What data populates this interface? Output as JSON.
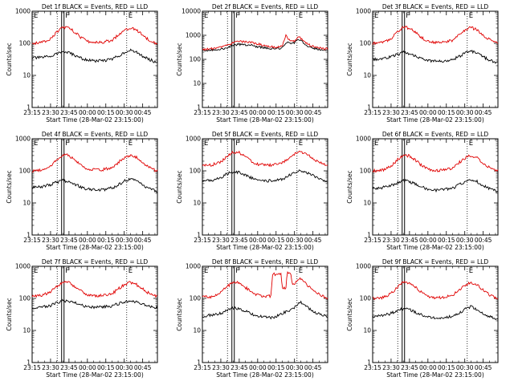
{
  "figure": {
    "type": "line",
    "xlabel": "Start Time (28-Mar-02 23:15:00)",
    "ylabel": "Counts/sec",
    "x_tick_labels": [
      "23:15",
      "23:30",
      "23:45",
      "00:00",
      "00:15",
      "00:30",
      "00:45"
    ],
    "y_tick_labels": [
      "1",
      "10",
      "100",
      "1000"
    ],
    "colors": {
      "events": "#000000",
      "lld": "#e00000"
    }
  },
  "chart_data": [
    {
      "type": "line",
      "title": "Det 1f BLACK = Events, RED = LLD",
      "xlabel": "Start Time (28-Mar-02 23:15:00)",
      "ylabel": "Counts/sec",
      "x_unit": "minutes after 23:15",
      "xlim": [
        0,
        102
      ],
      "ylim": [
        1,
        1000
      ],
      "yscale": "log",
      "markers": [
        {
          "label": "E",
          "x": 0
        },
        {
          "label": "F",
          "x": 25
        },
        {
          "label": "E",
          "x": 77
        }
      ],
      "series": [
        {
          "name": "Events",
          "color": "#000000",
          "x": [
            0,
            8,
            15,
            20,
            25,
            30,
            35,
            40,
            45,
            52,
            58,
            65,
            70,
            75,
            80,
            85,
            90,
            95,
            100,
            102
          ],
          "values": [
            35,
            36,
            40,
            48,
            55,
            50,
            42,
            34,
            30,
            28,
            29,
            32,
            40,
            52,
            60,
            52,
            40,
            32,
            27,
            26
          ]
        },
        {
          "name": "LLD",
          "color": "#e00000",
          "x": [
            0,
            8,
            15,
            20,
            25,
            30,
            35,
            40,
            45,
            52,
            58,
            65,
            70,
            75,
            80,
            85,
            90,
            95,
            100,
            102
          ],
          "values": [
            100,
            105,
            140,
            220,
            320,
            300,
            220,
            150,
            115,
            105,
            110,
            125,
            180,
            260,
            310,
            260,
            180,
            130,
            105,
            100
          ]
        }
      ]
    },
    {
      "type": "line",
      "title": "Det 2f BLACK = Events, RED = LLD",
      "xlabel": "Start Time (28-Mar-02 23:15:00)",
      "ylabel": "Counts/sec",
      "x_unit": "minutes after 23:15",
      "xlim": [
        0,
        102
      ],
      "ylim": [
        1,
        10000
      ],
      "yscale": "log",
      "markers": [
        {
          "label": "E",
          "x": 0
        },
        {
          "label": "F",
          "x": 25
        },
        {
          "label": "E",
          "x": 77
        }
      ],
      "series": [
        {
          "name": "Events",
          "color": "#000000",
          "x": [
            0,
            10,
            20,
            25,
            30,
            40,
            50,
            60,
            65,
            68,
            70,
            72,
            75,
            78,
            80,
            85,
            90,
            95,
            102
          ],
          "values": [
            230,
            240,
            300,
            380,
            420,
            380,
            300,
            270,
            290,
            450,
            520,
            450,
            500,
            700,
            600,
            380,
            300,
            260,
            240
          ]
        },
        {
          "name": "LLD",
          "color": "#e00000",
          "x": [
            0,
            10,
            20,
            25,
            30,
            40,
            50,
            60,
            65,
            68,
            70,
            72,
            75,
            78,
            80,
            85,
            90,
            95,
            102
          ],
          "values": [
            260,
            280,
            380,
            500,
            560,
            500,
            380,
            320,
            360,
            950,
            700,
            550,
            600,
            900,
            750,
            450,
            340,
            290,
            270
          ]
        }
      ]
    },
    {
      "type": "line",
      "title": "Det 3f BLACK = Events, RED = LLD",
      "xlabel": "Start Time (28-Mar-02 23:15:00)",
      "ylabel": "Counts/sec",
      "x_unit": "minutes after 23:15",
      "xlim": [
        0,
        102
      ],
      "ylim": [
        1,
        1000
      ],
      "yscale": "log",
      "markers": [
        {
          "label": "E",
          "x": 0
        },
        {
          "label": "F",
          "x": 25
        },
        {
          "label": "E",
          "x": 77
        }
      ],
      "series": [
        {
          "name": "Events",
          "color": "#000000",
          "x": [
            0,
            8,
            15,
            20,
            25,
            30,
            35,
            40,
            45,
            52,
            58,
            65,
            70,
            75,
            80,
            85,
            90,
            95,
            100,
            102
          ],
          "values": [
            32,
            33,
            38,
            45,
            52,
            48,
            40,
            33,
            29,
            27,
            28,
            31,
            38,
            50,
            58,
            50,
            38,
            30,
            26,
            25
          ]
        },
        {
          "name": "LLD",
          "color": "#e00000",
          "x": [
            0,
            8,
            15,
            20,
            25,
            30,
            35,
            40,
            45,
            52,
            58,
            65,
            70,
            75,
            80,
            85,
            90,
            95,
            100,
            102
          ],
          "values": [
            100,
            105,
            140,
            220,
            320,
            300,
            220,
            150,
            115,
            105,
            110,
            125,
            180,
            260,
            310,
            260,
            180,
            130,
            105,
            100
          ]
        }
      ]
    },
    {
      "type": "line",
      "title": "Det 4f BLACK = Events, RED = LLD",
      "xlabel": "Start Time (28-Mar-02 23:15:00)",
      "ylabel": "Counts/sec",
      "x_unit": "minutes after 23:15",
      "xlim": [
        0,
        102
      ],
      "ylim": [
        1,
        1000
      ],
      "yscale": "log",
      "markers": [
        {
          "label": "E",
          "x": 0
        },
        {
          "label": "F",
          "x": 25
        },
        {
          "label": "E",
          "x": 77
        }
      ],
      "series": [
        {
          "name": "Events",
          "color": "#000000",
          "x": [
            0,
            8,
            15,
            20,
            25,
            30,
            35,
            40,
            45,
            52,
            58,
            65,
            70,
            75,
            80,
            85,
            90,
            95,
            100,
            102
          ],
          "values": [
            30,
            32,
            37,
            44,
            50,
            46,
            38,
            31,
            27,
            25,
            26,
            29,
            36,
            48,
            55,
            47,
            36,
            28,
            24,
            23
          ]
        },
        {
          "name": "LLD",
          "color": "#e00000",
          "x": [
            0,
            8,
            15,
            20,
            25,
            30,
            35,
            40,
            45,
            52,
            58,
            65,
            70,
            75,
            80,
            85,
            90,
            95,
            100,
            102
          ],
          "values": [
            100,
            105,
            140,
            220,
            320,
            300,
            220,
            150,
            115,
            105,
            110,
            125,
            180,
            260,
            310,
            260,
            180,
            130,
            105,
            100
          ]
        }
      ]
    },
    {
      "type": "line",
      "title": "Det 5f BLACK = Events, RED = LLD",
      "xlabel": "Start Time (28-Mar-02 23:15:00)",
      "ylabel": "Counts/sec",
      "x_unit": "minutes after 23:15",
      "xlim": [
        0,
        102
      ],
      "ylim": [
        1,
        1000
      ],
      "yscale": "log",
      "markers": [
        {
          "label": "E",
          "x": 0
        },
        {
          "label": "F",
          "x": 25
        },
        {
          "label": "E",
          "x": 77
        }
      ],
      "series": [
        {
          "name": "Events",
          "color": "#000000",
          "x": [
            0,
            8,
            15,
            20,
            25,
            30,
            35,
            40,
            45,
            52,
            58,
            65,
            70,
            75,
            80,
            85,
            90,
            95,
            100,
            102
          ],
          "values": [
            50,
            52,
            62,
            80,
            95,
            90,
            75,
            60,
            52,
            48,
            50,
            55,
            70,
            90,
            105,
            90,
            70,
            58,
            50,
            48
          ]
        },
        {
          "name": "LLD",
          "color": "#e00000",
          "x": [
            0,
            8,
            15,
            20,
            25,
            30,
            35,
            40,
            45,
            52,
            58,
            65,
            70,
            75,
            80,
            85,
            90,
            95,
            100,
            102
          ],
          "values": [
            150,
            155,
            190,
            280,
            390,
            370,
            280,
            200,
            160,
            150,
            155,
            175,
            240,
            330,
            390,
            330,
            240,
            180,
            155,
            150
          ]
        }
      ]
    },
    {
      "type": "line",
      "title": "Det 6f BLACK = Events, RED = LLD",
      "xlabel": "Start Time (28-Mar-02 23:15:00)",
      "ylabel": "Counts/sec",
      "x_unit": "minutes after 23:15",
      "xlim": [
        0,
        102
      ],
      "ylim": [
        1,
        1000
      ],
      "yscale": "log",
      "markers": [
        {
          "label": "E",
          "x": 0
        },
        {
          "label": "F",
          "x": 25
        },
        {
          "label": "E",
          "x": 77
        }
      ],
      "series": [
        {
          "name": "Events",
          "color": "#000000",
          "x": [
            0,
            8,
            15,
            20,
            25,
            30,
            35,
            40,
            45,
            52,
            58,
            65,
            70,
            75,
            80,
            85,
            90,
            95,
            100,
            102
          ],
          "values": [
            28,
            30,
            35,
            42,
            50,
            46,
            38,
            31,
            27,
            25,
            26,
            29,
            36,
            46,
            55,
            46,
            35,
            28,
            24,
            23
          ]
        },
        {
          "name": "LLD",
          "color": "#e00000",
          "x": [
            0,
            8,
            15,
            20,
            25,
            30,
            35,
            40,
            45,
            52,
            58,
            65,
            70,
            75,
            80,
            85,
            90,
            95,
            100,
            102
          ],
          "values": [
            100,
            105,
            140,
            220,
            310,
            290,
            210,
            145,
            112,
            102,
            108,
            122,
            175,
            250,
            300,
            250,
            175,
            128,
            104,
            100
          ]
        }
      ]
    },
    {
      "type": "line",
      "title": "Det 7f BLACK = Events, RED = LLD",
      "xlabel": "Start Time (28-Mar-02 23:15:00)",
      "ylabel": "Counts/sec",
      "x_unit": "minutes after 23:15",
      "xlim": [
        0,
        102
      ],
      "ylim": [
        1,
        1000
      ],
      "yscale": "log",
      "markers": [
        {
          "label": "E",
          "x": 0
        },
        {
          "label": "F",
          "x": 25
        },
        {
          "label": "E",
          "x": 77
        }
      ],
      "series": [
        {
          "name": "Events",
          "color": "#000000",
          "x": [
            0,
            8,
            15,
            20,
            25,
            30,
            35,
            40,
            45,
            52,
            58,
            65,
            70,
            75,
            80,
            85,
            90,
            95,
            100,
            102
          ],
          "values": [
            50,
            52,
            60,
            72,
            85,
            82,
            72,
            62,
            55,
            52,
            54,
            58,
            68,
            78,
            85,
            78,
            66,
            58,
            52,
            50
          ]
        },
        {
          "name": "LLD",
          "color": "#e00000",
          "x": [
            0,
            8,
            15,
            20,
            25,
            30,
            35,
            40,
            45,
            52,
            58,
            65,
            70,
            75,
            80,
            85,
            90,
            95,
            100,
            102
          ],
          "values": [
            120,
            125,
            160,
            230,
            330,
            310,
            230,
            165,
            130,
            120,
            125,
            140,
            195,
            270,
            320,
            270,
            195,
            145,
            122,
            118
          ]
        }
      ]
    },
    {
      "type": "line",
      "title": "Det 8f BLACK = Events, RED = LLD",
      "xlabel": "Start Time (28-Mar-02 23:15:00)",
      "ylabel": "Counts/sec",
      "x_unit": "minutes after 23:15",
      "xlim": [
        0,
        102
      ],
      "ylim": [
        1,
        1000
      ],
      "yscale": "log",
      "markers": [
        {
          "label": "E",
          "x": 0
        },
        {
          "label": "F",
          "x": 25
        },
        {
          "label": "E",
          "x": 77
        }
      ],
      "series": [
        {
          "name": "Events",
          "color": "#000000",
          "x": [
            0,
            8,
            15,
            20,
            25,
            30,
            35,
            40,
            45,
            52,
            58,
            62,
            65,
            70,
            75,
            80,
            85,
            90,
            95,
            100,
            102
          ],
          "values": [
            28,
            30,
            34,
            42,
            50,
            48,
            40,
            33,
            28,
            26,
            25,
            30,
            34,
            40,
            52,
            75,
            55,
            40,
            32,
            28,
            27
          ]
        },
        {
          "name": "LLD",
          "color": "#e00000",
          "x": [
            0,
            8,
            15,
            20,
            25,
            30,
            35,
            40,
            45,
            52,
            56,
            57,
            64,
            65,
            68,
            69,
            72,
            73,
            75,
            80,
            85,
            90,
            95,
            100,
            102
          ],
          "values": [
            110,
            112,
            150,
            230,
            320,
            300,
            220,
            160,
            125,
            115,
            120,
            560,
            560,
            200,
            210,
            620,
            620,
            280,
            290,
            420,
            270,
            180,
            130,
            108,
            105
          ]
        }
      ]
    },
    {
      "type": "line",
      "title": "Det 9f BLACK = Events, RED = LLD",
      "xlabel": "Start Time (28-Mar-02 23:15:00)",
      "ylabel": "Counts/sec",
      "x_unit": "minutes after 23:15",
      "xlim": [
        0,
        102
      ],
      "ylim": [
        1,
        1000
      ],
      "yscale": "log",
      "markers": [
        {
          "label": "E",
          "x": 0
        },
        {
          "label": "F",
          "x": 25
        },
        {
          "label": "E",
          "x": 77
        }
      ],
      "series": [
        {
          "name": "Events",
          "color": "#000000",
          "x": [
            0,
            8,
            15,
            20,
            25,
            30,
            35,
            40,
            45,
            52,
            58,
            65,
            70,
            75,
            80,
            85,
            90,
            95,
            100,
            102
          ],
          "values": [
            27,
            29,
            34,
            41,
            48,
            45,
            37,
            30,
            26,
            24,
            25,
            28,
            35,
            45,
            55,
            45,
            34,
            27,
            23,
            22
          ]
        },
        {
          "name": "LLD",
          "color": "#e00000",
          "x": [
            0,
            8,
            15,
            20,
            25,
            30,
            35,
            40,
            45,
            52,
            58,
            65,
            70,
            75,
            80,
            85,
            90,
            95,
            100,
            102
          ],
          "values": [
            100,
            105,
            140,
            220,
            320,
            300,
            220,
            150,
            115,
            105,
            110,
            125,
            180,
            260,
            310,
            260,
            180,
            130,
            105,
            100
          ]
        }
      ]
    }
  ]
}
